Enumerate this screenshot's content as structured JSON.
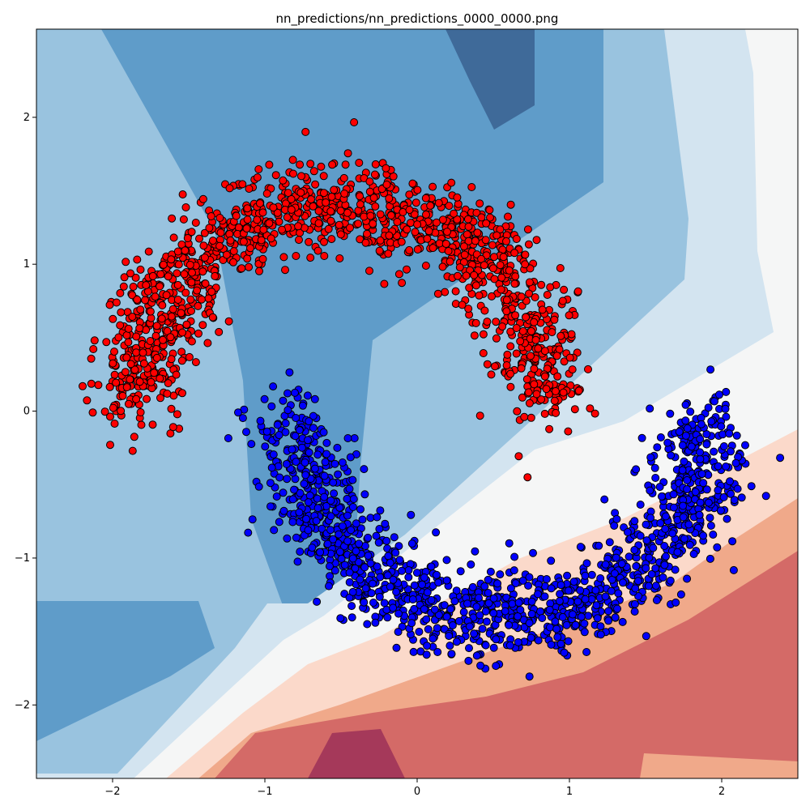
{
  "chart_data": {
    "type": "scatter",
    "title": "nn_predictions/nn_predictions_0000_0000.png",
    "xlabel": "",
    "ylabel": "",
    "xlim": [
      -2.5,
      2.5
    ],
    "ylim": [
      -2.5,
      2.6
    ],
    "x_ticks": [
      -2,
      -1,
      0,
      1,
      2
    ],
    "x_tick_labels": [
      "−2",
      "−1",
      "0",
      "1",
      "2"
    ],
    "y_ticks": [
      -2,
      -1,
      0,
      1,
      2
    ],
    "y_tick_labels": [
      "−2",
      "−1",
      "0",
      "1",
      "2"
    ],
    "grid": false,
    "legend": "none",
    "description_of_data": "Two interleaving half-moons (~3000 points each) over a neural-network decision-boundary contour map (RdBu colormap).",
    "series": [
      {
        "color": "#ff0000",
        "shape": "upper half-moon",
        "arc_center": [
          -0.5,
          0.05
        ],
        "arc_radius": 1.35,
        "arc_angle_deg": [
          0,
          180
        ],
        "noise_sd": 0.15,
        "approx_points": 3000
      },
      {
        "color": "#0000ff",
        "shape": "lower half-moon",
        "arc_center": [
          0.55,
          -0.05
        ],
        "arc_radius": 1.35,
        "arc_angle_deg": [
          180,
          360
        ],
        "noise_sd": 0.15,
        "approx_points": 3000
      }
    ],
    "background_contour": {
      "colormap": "RdBu",
      "levels_colors": [
        "#3f6a99",
        "#5f9cc9",
        "#99c3df",
        "#d3e4f0",
        "#f5f6f6",
        "#fbd9ca",
        "#f0a98a",
        "#d46a67",
        "#a5395a"
      ]
    }
  }
}
